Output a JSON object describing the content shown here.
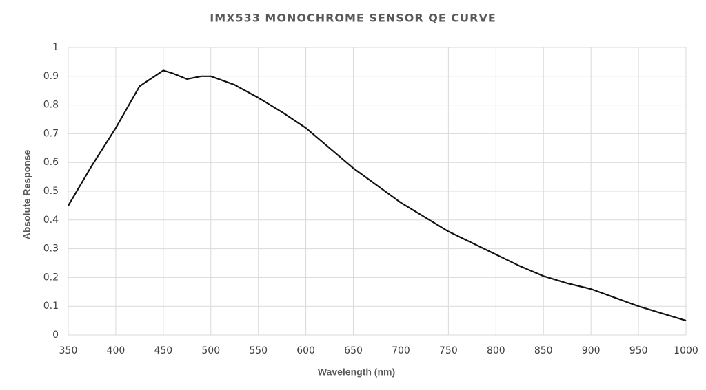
{
  "chart_data": {
    "type": "line",
    "title": "IMX533 MONOCHROME SENSOR QE CURVE",
    "x_label": "Wavelength (nm)",
    "y_label": "Absolute Response",
    "x": [
      350,
      375,
      400,
      425,
      450,
      460,
      475,
      490,
      500,
      525,
      550,
      575,
      600,
      625,
      650,
      675,
      700,
      725,
      750,
      775,
      800,
      825,
      850,
      875,
      900,
      925,
      950,
      975,
      1000
    ],
    "series": [
      {
        "name": "QE",
        "color": "#111111",
        "values": [
          0.45,
          0.59,
          0.72,
          0.865,
          0.92,
          0.91,
          0.89,
          0.9,
          0.9,
          0.87,
          0.825,
          0.775,
          0.72,
          0.65,
          0.58,
          0.52,
          0.46,
          0.41,
          0.36,
          0.32,
          0.28,
          0.24,
          0.205,
          0.18,
          0.16,
          0.13,
          0.1,
          0.075,
          0.05
        ]
      }
    ],
    "xlim": [
      350,
      1000
    ],
    "xticks": [
      350,
      400,
      450,
      500,
      550,
      600,
      650,
      700,
      750,
      800,
      850,
      900,
      950,
      1000
    ],
    "ylim": [
      0,
      1
    ],
    "yticks": [
      0,
      0.1,
      0.2,
      0.3,
      0.4,
      0.5,
      0.6,
      0.7,
      0.8,
      0.9,
      1
    ],
    "grid": true
  }
}
